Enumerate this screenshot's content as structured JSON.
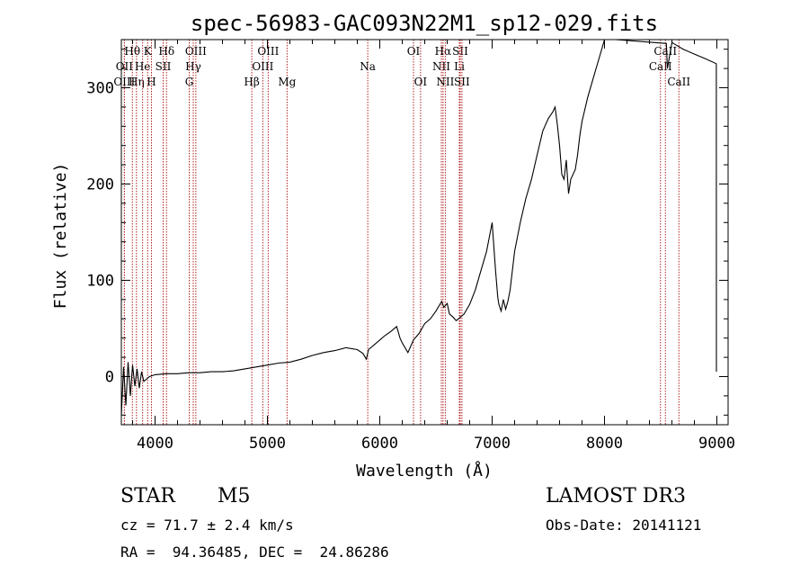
{
  "chart_data": {
    "type": "line",
    "title": "spec-56983-GAC093N22M1_sp12-029.fits",
    "xlabel": "Wavelength (Å)",
    "ylabel": "Flux (relative)",
    "xlim": [
      3700,
      9100
    ],
    "ylim": [
      -50,
      350
    ],
    "xticks": [
      4000,
      5000,
      6000,
      7000,
      8000,
      9000
    ],
    "yticks": [
      0,
      100,
      200,
      300
    ],
    "series": [
      {
        "name": "flux",
        "x": [
          3700,
          3720,
          3740,
          3760,
          3780,
          3800,
          3820,
          3840,
          3860,
          3880,
          3900,
          3950,
          4000,
          4100,
          4200,
          4300,
          4400,
          4500,
          4600,
          4700,
          4800,
          4900,
          5000,
          5100,
          5200,
          5300,
          5400,
          5500,
          5600,
          5700,
          5800,
          5850,
          5880,
          5900,
          5950,
          6000,
          6050,
          6100,
          6150,
          6180,
          6200,
          6250,
          6300,
          6350,
          6400,
          6450,
          6500,
          6550,
          6570,
          6600,
          6620,
          6650,
          6680,
          6700,
          6720,
          6750,
          6800,
          6850,
          6900,
          6950,
          7000,
          7030,
          7050,
          7060,
          7080,
          7100,
          7120,
          7140,
          7160,
          7200,
          7250,
          7300,
          7350,
          7400,
          7450,
          7500,
          7540,
          7560,
          7580,
          7600,
          7620,
          7640,
          7660,
          7680,
          7700,
          7720,
          7740,
          7760,
          7780,
          7800,
          7850,
          7900,
          7950,
          8000,
          8050,
          8080,
          8100,
          8550,
          8560,
          8600,
          8700,
          8800,
          8900,
          8995,
          8996
        ],
        "y": [
          -40,
          10,
          -30,
          15,
          -20,
          12,
          -10,
          8,
          -12,
          5,
          -5,
          0,
          2,
          3,
          3,
          4,
          4,
          5,
          5,
          6,
          8,
          10,
          12,
          14,
          15,
          18,
          22,
          25,
          27,
          30,
          28,
          24,
          18,
          28,
          33,
          38,
          43,
          47,
          52,
          40,
          35,
          25,
          38,
          45,
          55,
          60,
          68,
          78,
          72,
          76,
          65,
          62,
          58,
          60,
          62,
          65,
          75,
          90,
          110,
          130,
          160,
          110,
          82,
          75,
          68,
          80,
          70,
          78,
          90,
          130,
          160,
          185,
          205,
          230,
          255,
          268,
          275,
          280,
          262,
          240,
          210,
          205,
          225,
          190,
          205,
          210,
          215,
          230,
          250,
          265,
          290,
          310,
          330,
          350,
          352,
          350,
          350,
          346,
          320,
          347,
          340,
          335,
          330,
          325,
          5
        ]
      }
    ],
    "lines": [
      {
        "name": "Hθ",
        "x": 3798,
        "row": 0
      },
      {
        "name": "OII",
        "x": 3727,
        "row": 1
      },
      {
        "name": "OIII",
        "x": 3727,
        "row": 2
      },
      {
        "name": "Hη",
        "x": 3835,
        "row": 2
      },
      {
        "name": "He",
        "x": 3889,
        "row": 1
      },
      {
        "name": "K",
        "x": 3934,
        "row": 0
      },
      {
        "name": "H",
        "x": 3968,
        "row": 2
      },
      {
        "name": "SII",
        "x": 4072,
        "row": 1
      },
      {
        "name": "Hδ",
        "x": 4102,
        "row": 0
      },
      {
        "name": "OIII",
        "x": 4363,
        "row": 0
      },
      {
        "name": "Hγ",
        "x": 4340,
        "row": 1
      },
      {
        "name": "G",
        "x": 4304,
        "row": 2
      },
      {
        "name": "Hβ",
        "x": 4861,
        "row": 2
      },
      {
        "name": "OIII",
        "x": 4959,
        "row": 1
      },
      {
        "name": "OIII",
        "x": 5007,
        "row": 0
      },
      {
        "name": "Mg",
        "x": 5175,
        "row": 2
      },
      {
        "name": "Na",
        "x": 5893,
        "row": 1
      },
      {
        "name": "OI",
        "x": 6300,
        "row": 0
      },
      {
        "name": "OI",
        "x": 6363,
        "row": 2
      },
      {
        "name": "NII",
        "x": 6548,
        "row": 1
      },
      {
        "name": "Hα",
        "x": 6563,
        "row": 0
      },
      {
        "name": "NII",
        "x": 6583,
        "row": 2
      },
      {
        "name": "Li",
        "x": 6708,
        "row": 1
      },
      {
        "name": "SII",
        "x": 6716,
        "row": 0
      },
      {
        "name": "SII",
        "x": 6731,
        "row": 2
      },
      {
        "name": "CaII",
        "x": 8498,
        "row": 1
      },
      {
        "name": "CaII",
        "x": 8542,
        "row": 0
      },
      {
        "name": "CaII",
        "x": 8662,
        "row": 2
      }
    ]
  },
  "info": {
    "class_type": "STAR",
    "subclass": "M5",
    "survey": "LAMOST DR3",
    "cz": "cz = 71.7 ± 2.4 km/s",
    "obs_date": "Obs-Date: 20141121",
    "radec": "RA =  94.36485, DEC =  24.86286"
  }
}
